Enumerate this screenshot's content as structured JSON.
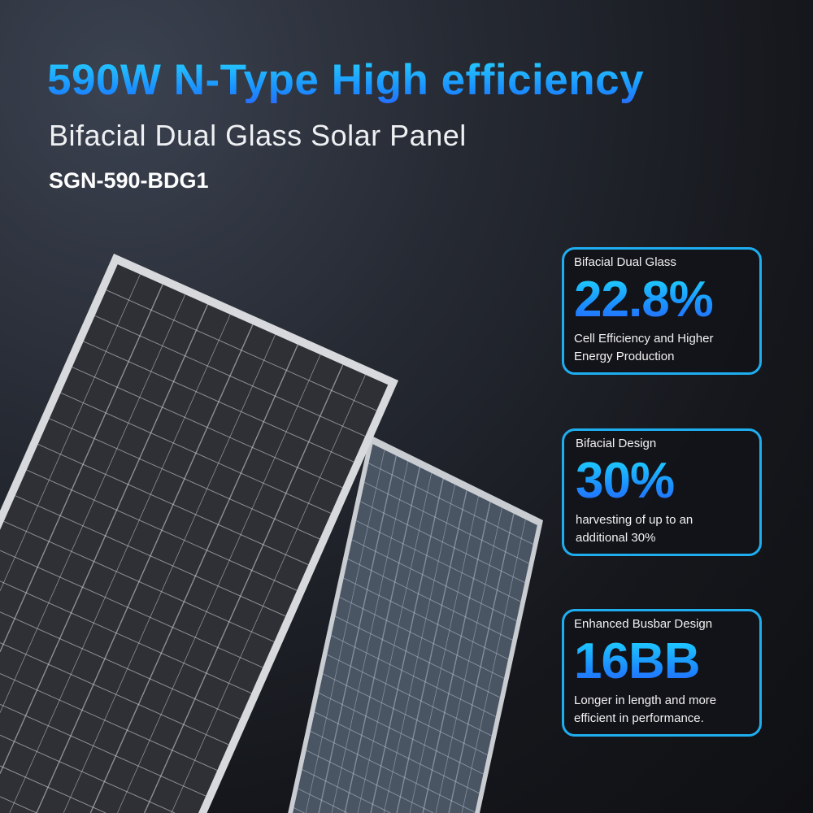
{
  "headline": "590W N-Type High efficiency",
  "subtitle": "Bifacial Dual Glass Solar Panel",
  "model": "SGN-590-BDG1",
  "colors": {
    "accent": "#1eaef0",
    "gradient_top": "#27d4ff",
    "gradient_bottom": "#2a6bff",
    "background": "#1a1d23"
  },
  "features": [
    {
      "label": "Bifacial Dual Glass",
      "value": "22.8%",
      "desc1": "Cell Efficiency and Higher",
      "desc2": "Energy Production"
    },
    {
      "label": "Bifacial Design",
      "value": "30%",
      "desc1": "harvesting of up to an",
      "desc2": "additional 30%"
    },
    {
      "label": "Enhanced Busbar Design",
      "value": "16BB",
      "desc1": "Longer in length and more",
      "desc2": "efficient in performance."
    }
  ]
}
